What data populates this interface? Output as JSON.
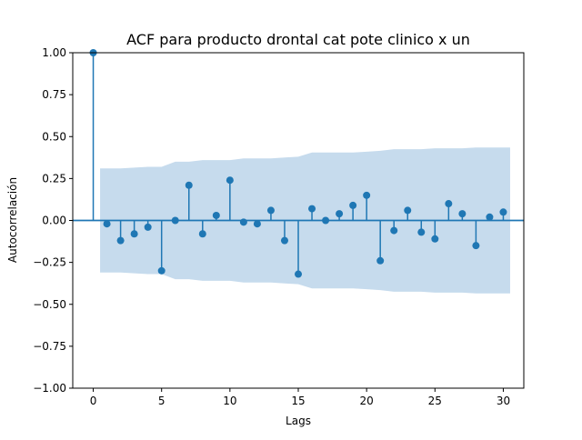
{
  "chart_data": {
    "type": "stem",
    "title": "ACF para producto drontal cat pote clinico x un",
    "xlabel": "Lags",
    "ylabel": "Autocorrelación",
    "xlim": [
      -1.5,
      31.5
    ],
    "ylim": [
      -1.0,
      1.0
    ],
    "grid": false,
    "x_ticks": [
      0,
      5,
      10,
      15,
      20,
      25,
      30
    ],
    "y_ticks": [
      -1.0,
      -0.75,
      -0.5,
      -0.25,
      0.0,
      0.25,
      0.5,
      0.75,
      1.0
    ],
    "y_tick_labels": [
      "−1.00",
      "−0.75",
      "−0.50",
      "−0.25",
      "0.00",
      "0.25",
      "0.50",
      "0.75",
      "1.00"
    ],
    "lags": [
      0,
      1,
      2,
      3,
      4,
      5,
      6,
      7,
      8,
      9,
      10,
      11,
      12,
      13,
      14,
      15,
      16,
      17,
      18,
      19,
      20,
      21,
      22,
      23,
      24,
      25,
      26,
      27,
      28,
      29,
      30
    ],
    "acf": [
      1.0,
      -0.02,
      -0.12,
      -0.08,
      -0.04,
      -0.3,
      0.0,
      0.21,
      -0.08,
      0.03,
      0.24,
      -0.01,
      -0.02,
      0.06,
      -0.12,
      -0.32,
      0.07,
      0.0,
      0.04,
      0.09,
      0.15,
      -0.24,
      -0.06,
      0.06,
      -0.07,
      -0.11,
      0.1,
      0.04,
      -0.15,
      0.02,
      0.05
    ],
    "confidence_band": [
      [
        0.5,
        0.31
      ],
      [
        1,
        0.31
      ],
      [
        2,
        0.31
      ],
      [
        3,
        0.315
      ],
      [
        4,
        0.32
      ],
      [
        5,
        0.32
      ],
      [
        6,
        0.35
      ],
      [
        7,
        0.35
      ],
      [
        8,
        0.36
      ],
      [
        9,
        0.36
      ],
      [
        10,
        0.36
      ],
      [
        11,
        0.37
      ],
      [
        12,
        0.37
      ],
      [
        13,
        0.37
      ],
      [
        14,
        0.375
      ],
      [
        15,
        0.38
      ],
      [
        16,
        0.405
      ],
      [
        17,
        0.405
      ],
      [
        18,
        0.405
      ],
      [
        19,
        0.405
      ],
      [
        20,
        0.41
      ],
      [
        21,
        0.415
      ],
      [
        22,
        0.425
      ],
      [
        23,
        0.425
      ],
      [
        24,
        0.425
      ],
      [
        25,
        0.43
      ],
      [
        26,
        0.43
      ],
      [
        27,
        0.43
      ],
      [
        28,
        0.435
      ],
      [
        29,
        0.435
      ],
      [
        30,
        0.435
      ],
      [
        30.5,
        0.435
      ]
    ],
    "colors": {
      "stem": "#1f77b4",
      "band": "#c6dbed",
      "baseline": "#1f77b4"
    }
  }
}
